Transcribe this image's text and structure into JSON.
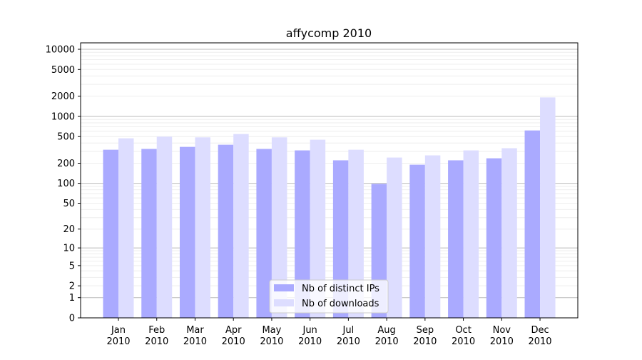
{
  "chart_data": {
    "type": "bar",
    "title": "affycomp 2010",
    "xlabel": "",
    "ylabel": "",
    "yscale": "symlog",
    "ylim": [
      0,
      12000
    ],
    "yticks": [
      0,
      1,
      2,
      5,
      10,
      20,
      50,
      100,
      200,
      500,
      1000,
      2000,
      5000,
      10000
    ],
    "grid": true,
    "legend_position": "bottom-center",
    "categories": [
      [
        "Jan",
        "2010"
      ],
      [
        "Feb",
        "2010"
      ],
      [
        "Mar",
        "2010"
      ],
      [
        "Apr",
        "2010"
      ],
      [
        "May",
        "2010"
      ],
      [
        "Jun",
        "2010"
      ],
      [
        "Jul",
        "2010"
      ],
      [
        "Aug",
        "2010"
      ],
      [
        "Sep",
        "2010"
      ],
      [
        "Oct",
        "2010"
      ],
      [
        "Nov",
        "2010"
      ],
      [
        "Dec",
        "2010"
      ]
    ],
    "series": [
      {
        "name": "Nb of distinct IPs",
        "color": "#aaaaff",
        "values": [
          318,
          327,
          351,
          378,
          327,
          311,
          221,
          98,
          190,
          221,
          237,
          617
        ]
      },
      {
        "name": "Nb of downloads",
        "color": "#ddddff",
        "values": [
          471,
          499,
          487,
          546,
          487,
          449,
          318,
          243,
          262,
          311,
          335,
          1919
        ]
      }
    ]
  }
}
